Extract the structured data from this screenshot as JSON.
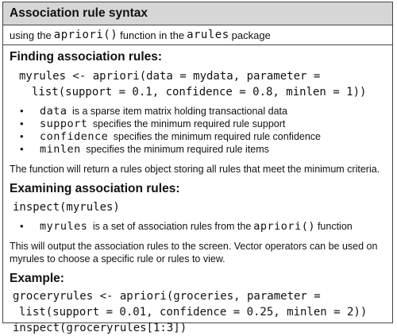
{
  "title": "Association rule syntax",
  "subtitle": {
    "prefix": "using the",
    "function_name": "apriori()",
    "middle": "function in the",
    "package_name": "arules",
    "suffix": "package"
  },
  "finding": {
    "heading": "Finding association rules:",
    "code_line1": "myrules <- apriori(data = mydata, parameter =",
    "code_line2": "list(support = 0.1, confidence = 0.8, minlen = 1))",
    "bullets": [
      {
        "term": "data",
        "desc": "is a sparse item matrix holding transactional data"
      },
      {
        "term": "support",
        "desc": "specifies the minimum required rule support"
      },
      {
        "term": "confidence",
        "desc": "specifies the minimum required rule confidence"
      },
      {
        "term": "minlen",
        "desc": "specifies the minimum required rule items"
      }
    ],
    "note": "The function will return a rules object storing all rules that meet the minimum criteria."
  },
  "examining": {
    "heading": "Examining association rules:",
    "code_line1": "inspect(myrules)",
    "bullet": {
      "term": "myrules",
      "desc_prefix": "is a set of association rules from the",
      "func": "apriori()",
      "desc_suffix": "function"
    },
    "note_line1": "This will output the association rules to the screen. Vector operators can be used on",
    "note_line2": "myrules to choose a specific rule or rules to view."
  },
  "example": {
    "heading": "Example:",
    "code_line1": "groceryrules <- apriori(groceries, parameter =",
    "code_line2": "list(support = 0.01, confidence = 0.25, minlen = 2))",
    "code_line3": "inspect(groceryrules[1:3])"
  }
}
